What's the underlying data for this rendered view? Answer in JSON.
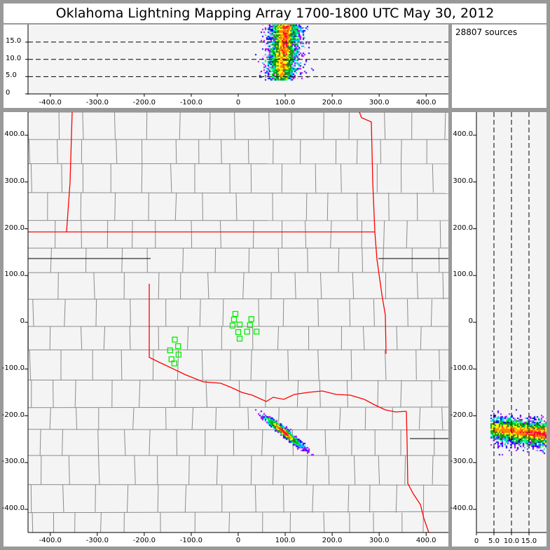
{
  "title": "Oklahoma Lightning Mapping Array   1700-1800 UTC  May 30, 2012",
  "source_count": "28807 sources",
  "colors": {
    "state_border": "#ff0000",
    "county_border": "#8c8c8c",
    "station": "#00ee00",
    "background": "#f4f4f4"
  },
  "density_colormap": [
    "#ffb0ff",
    "#a000ff",
    "#0000ff",
    "#00c0ff",
    "#00ff80",
    "#00c000",
    "#2a7a2a",
    "#ffff00",
    "#ff8000",
    "#ff0040"
  ],
  "top_panel": {
    "y_ticks": [
      "0",
      "5.0",
      "10.0",
      "15.0"
    ],
    "x_ticks": [
      "-400.0",
      "-300.0",
      "-200.0",
      "-100.0",
      "0",
      "100.0",
      "200.0",
      "300.0",
      "400.0"
    ]
  },
  "map_panel": {
    "y_ticks": [
      "400.0",
      "300.0",
      "200.0",
      "100.0",
      "0",
      "-100.0",
      "-200.0",
      "-300.0",
      "-400.0"
    ],
    "x_ticks": [
      "-400.0",
      "-300.0",
      "-200.0",
      "-100.0",
      "0",
      "100.0",
      "200.0",
      "300.0",
      "400.0"
    ]
  },
  "right_panel": {
    "y_ticks": [
      "400.0",
      "300.0",
      "200.0",
      "100.0",
      "0",
      "-100.0",
      "-200.0",
      "-300.0",
      "-400.0"
    ],
    "x_ticks": [
      "0",
      "5.0",
      "10.0",
      "15.0"
    ]
  },
  "stations_km": [
    [
      -6,
      18
    ],
    [
      -9,
      6
    ],
    [
      -12,
      -7
    ],
    [
      3,
      -5
    ],
    [
      28,
      7
    ],
    [
      25,
      -6
    ],
    [
      0,
      -21
    ],
    [
      19,
      -20
    ],
    [
      39,
      -20
    ],
    [
      3,
      -35
    ],
    [
      -135,
      -37
    ],
    [
      -128,
      -51
    ],
    [
      -145,
      -60
    ],
    [
      -127,
      -69
    ],
    [
      -142,
      -79
    ],
    [
      -136,
      -88
    ]
  ],
  "storm_km": {
    "center_x": 95,
    "center_y": -232,
    "alt_min": 4,
    "alt_max": 20
  }
}
